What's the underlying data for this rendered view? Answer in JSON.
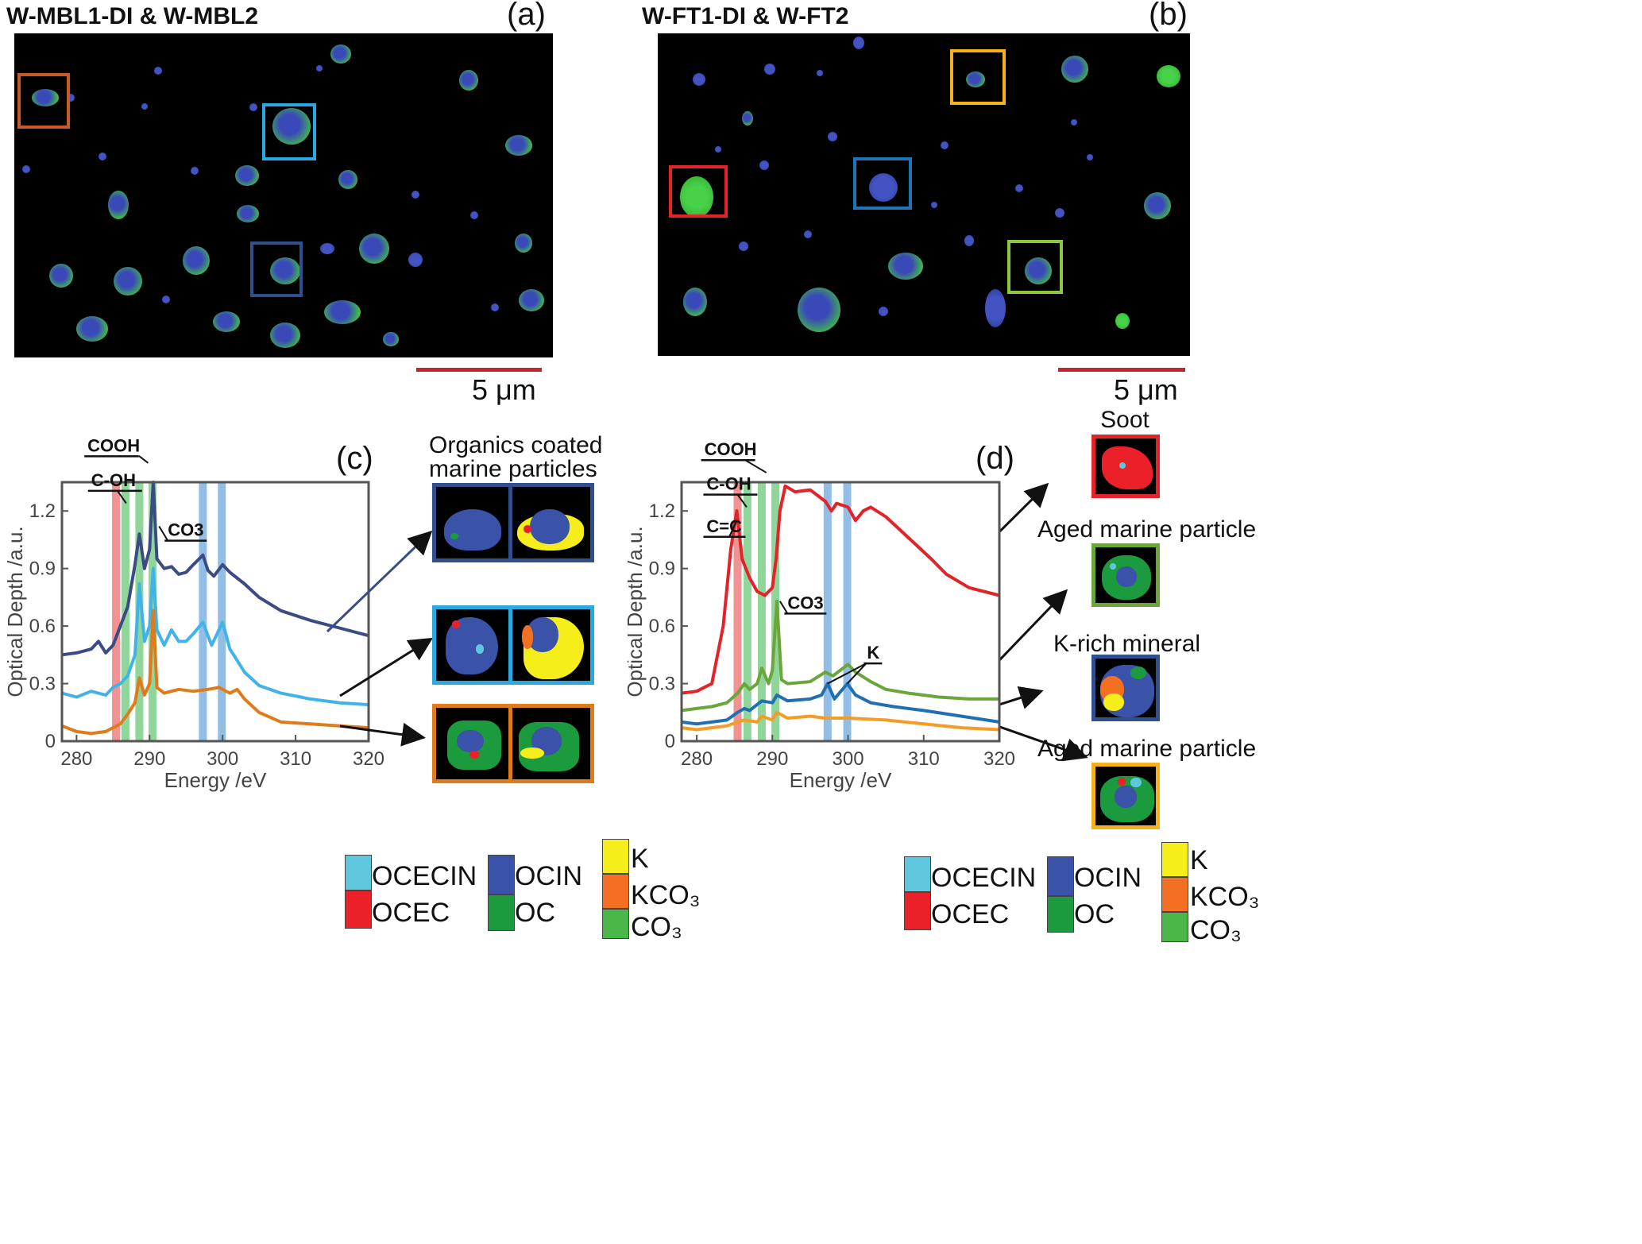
{
  "panels": {
    "a": {
      "title": "W-MBL1-DI & W-MBL2",
      "label": "(a)",
      "scale": "5 μm"
    },
    "b": {
      "title": "W-FT1-DI & W-FT2",
      "label": "(b)",
      "scale": "5 μm"
    },
    "c": {
      "label": "(c)",
      "group_label_line1": "Organics coated",
      "group_label_line2": "marine particles"
    },
    "d": {
      "label": "(d)",
      "thumb_labels": [
        "Soot",
        "Aged marine particle",
        "K-rich mineral",
        "Aged marine particle"
      ]
    }
  },
  "colors": {
    "OCECIN": "#5fc7dd",
    "OCEC": "#ec2028",
    "OCIN": "#3a52a8",
    "OC": "#1b9a3e",
    "K": "#f5ee1a",
    "KCO3": "#f36f21",
    "CO3": "#4cb749",
    "box_orange": "#c85a28",
    "box_lightblue": "#29a9e0",
    "box_navy": "#2f4f8f",
    "box_red": "#e2232a",
    "box_yellow": "#f6b21b",
    "box_blue": "#1f74b5",
    "box_green": "#8dc63f"
  },
  "legend": {
    "col1": [
      "OCECIN",
      "OCEC"
    ],
    "col2": [
      "OCIN",
      "OC"
    ],
    "col3": [
      "K",
      "KCO₃",
      "CO₃"
    ]
  },
  "chart_data": [
    {
      "id": "c",
      "type": "line",
      "xlabel": "Energy /eV",
      "ylabel": "Optical Depth /a.u.",
      "xlim": [
        278,
        320
      ],
      "ylim": [
        0,
        1.35
      ],
      "xticks": [
        280,
        290,
        300,
        310,
        320
      ],
      "yticks": [
        0,
        0.3,
        0.6,
        0.9,
        1.2
      ],
      "ytick_labels": [
        "0",
        "0.3",
        "0.6",
        "0.9",
        "1.2"
      ],
      "bands": [
        {
          "x": 285.4,
          "color": "#f08080"
        },
        {
          "x": 286.7,
          "color": "#7ccf8a"
        },
        {
          "x": 288.6,
          "color": "#7ccf8a"
        },
        {
          "x": 290.4,
          "color": "#7ccf8a"
        },
        {
          "x": 297.3,
          "color": "#7fb3e0"
        },
        {
          "x": 299.9,
          "color": "#7fb3e0"
        }
      ],
      "annotations": [
        {
          "text": "COOH",
          "x": 281.5,
          "y": 1.51
        },
        {
          "text": "C-OH",
          "x": 282.0,
          "y": 1.33
        },
        {
          "text": "CO3",
          "x": 292.5,
          "y": 1.07
        }
      ],
      "series": [
        {
          "color": "#3b4c85",
          "x": [
            278,
            280,
            282,
            283,
            284,
            285,
            286,
            287,
            288,
            288.6,
            289.3,
            290,
            290.5,
            291,
            292,
            293,
            294,
            295,
            296,
            297.3,
            298,
            298.8,
            300,
            301,
            303,
            305,
            308,
            312,
            316,
            320
          ],
          "y": [
            0.45,
            0.46,
            0.48,
            0.52,
            0.46,
            0.5,
            0.6,
            0.7,
            0.92,
            1.08,
            0.9,
            1.0,
            1.35,
            0.95,
            0.9,
            0.91,
            0.87,
            0.88,
            0.92,
            0.97,
            0.89,
            0.86,
            0.92,
            0.88,
            0.82,
            0.75,
            0.68,
            0.63,
            0.59,
            0.55
          ]
        },
        {
          "color": "#41b3e8",
          "x": [
            278,
            280,
            282,
            284,
            285,
            286,
            287,
            288,
            288.6,
            289.3,
            290,
            290.5,
            291,
            292,
            293,
            294,
            295,
            296,
            297.3,
            298.5,
            300,
            301,
            303,
            305,
            308,
            312,
            316,
            320
          ],
          "y": [
            0.25,
            0.23,
            0.26,
            0.24,
            0.28,
            0.3,
            0.34,
            0.45,
            0.82,
            0.52,
            0.6,
            0.9,
            0.58,
            0.5,
            0.58,
            0.52,
            0.52,
            0.56,
            0.62,
            0.5,
            0.62,
            0.48,
            0.36,
            0.29,
            0.25,
            0.22,
            0.2,
            0.19
          ]
        },
        {
          "color": "#e07b1c",
          "x": [
            278,
            280,
            282,
            284,
            285,
            286,
            287,
            288,
            288.6,
            289.3,
            290,
            290.5,
            291,
            292,
            294,
            296,
            298,
            299.5,
            301,
            302,
            303,
            305,
            308,
            312,
            316,
            320
          ],
          "y": [
            0.08,
            0.05,
            0.04,
            0.05,
            0.07,
            0.09,
            0.14,
            0.2,
            0.33,
            0.24,
            0.3,
            0.68,
            0.28,
            0.25,
            0.27,
            0.26,
            0.27,
            0.28,
            0.25,
            0.27,
            0.22,
            0.15,
            0.1,
            0.09,
            0.08,
            0.07
          ]
        }
      ]
    },
    {
      "id": "d",
      "type": "line",
      "xlabel": "Energy /eV",
      "ylabel": "Optical Depth /a.u.",
      "xlim": [
        278,
        320
      ],
      "ylim": [
        0,
        1.35
      ],
      "xticks": [
        280,
        290,
        300,
        310,
        320
      ],
      "yticks": [
        0,
        0.3,
        0.6,
        0.9,
        1.2
      ],
      "ytick_labels": [
        "0",
        "0.3",
        "0.6",
        "0.9",
        "1.2"
      ],
      "bands": [
        {
          "x": 285.4,
          "color": "#f08080"
        },
        {
          "x": 286.7,
          "color": "#7ccf8a"
        },
        {
          "x": 288.6,
          "color": "#7ccf8a"
        },
        {
          "x": 290.4,
          "color": "#7ccf8a"
        },
        {
          "x": 297.3,
          "color": "#7fb3e0"
        },
        {
          "x": 299.9,
          "color": "#7fb3e0"
        }
      ],
      "annotations": [
        {
          "text": "COOH",
          "x": 281.0,
          "y": 1.49
        },
        {
          "text": "C-OH",
          "x": 281.3,
          "y": 1.31
        },
        {
          "text": "C=C",
          "x": 281.3,
          "y": 1.09
        },
        {
          "text": "CO3",
          "x": 292.0,
          "y": 0.69
        },
        {
          "text": "K",
          "x": 302.5,
          "y": 0.43
        }
      ],
      "series": [
        {
          "color": "#e2232a",
          "x": [
            278,
            280,
            282,
            283.5,
            284.5,
            285.3,
            286,
            287,
            288,
            289,
            290,
            290.5,
            291,
            291.7,
            293,
            295,
            297,
            297.8,
            298.5,
            300,
            301,
            302,
            303,
            305,
            308,
            311,
            313,
            316,
            320
          ],
          "y": [
            0.25,
            0.26,
            0.3,
            0.6,
            1.0,
            1.2,
            0.95,
            0.85,
            0.78,
            0.76,
            0.8,
            0.95,
            1.2,
            1.33,
            1.3,
            1.31,
            1.25,
            1.2,
            1.24,
            1.22,
            1.15,
            1.2,
            1.22,
            1.17,
            1.06,
            0.95,
            0.87,
            0.8,
            0.76
          ]
        },
        {
          "color": "#6aa63a",
          "x": [
            278,
            280,
            282,
            284,
            285.4,
            286.3,
            287,
            288,
            288.6,
            289.5,
            290,
            290.6,
            291.2,
            292,
            295,
            297,
            298,
            300,
            301,
            303,
            305,
            308,
            312,
            316,
            320
          ],
          "y": [
            0.16,
            0.17,
            0.18,
            0.2,
            0.25,
            0.3,
            0.27,
            0.3,
            0.38,
            0.3,
            0.37,
            0.73,
            0.32,
            0.3,
            0.31,
            0.36,
            0.34,
            0.4,
            0.36,
            0.31,
            0.27,
            0.25,
            0.23,
            0.22,
            0.22
          ]
        },
        {
          "color": "#1f6fb5",
          "x": [
            278,
            280,
            282,
            284,
            285.4,
            286.3,
            287,
            288.6,
            290,
            290.6,
            292,
            295,
            296.5,
            297.3,
            298.2,
            299.9,
            301,
            303,
            306,
            310,
            315,
            320
          ],
          "y": [
            0.1,
            0.09,
            0.1,
            0.11,
            0.15,
            0.17,
            0.16,
            0.21,
            0.2,
            0.24,
            0.21,
            0.22,
            0.24,
            0.3,
            0.22,
            0.3,
            0.24,
            0.2,
            0.18,
            0.16,
            0.13,
            0.1
          ]
        },
        {
          "color": "#f39c26",
          "x": [
            278,
            280,
            282,
            284,
            285.4,
            286.3,
            288,
            288.6,
            290,
            290.6,
            292,
            295,
            297,
            300,
            305,
            310,
            315,
            320
          ],
          "y": [
            0.07,
            0.06,
            0.07,
            0.08,
            0.1,
            0.11,
            0.1,
            0.13,
            0.11,
            0.15,
            0.12,
            0.13,
            0.12,
            0.12,
            0.11,
            0.09,
            0.07,
            0.06
          ]
        }
      ]
    }
  ]
}
